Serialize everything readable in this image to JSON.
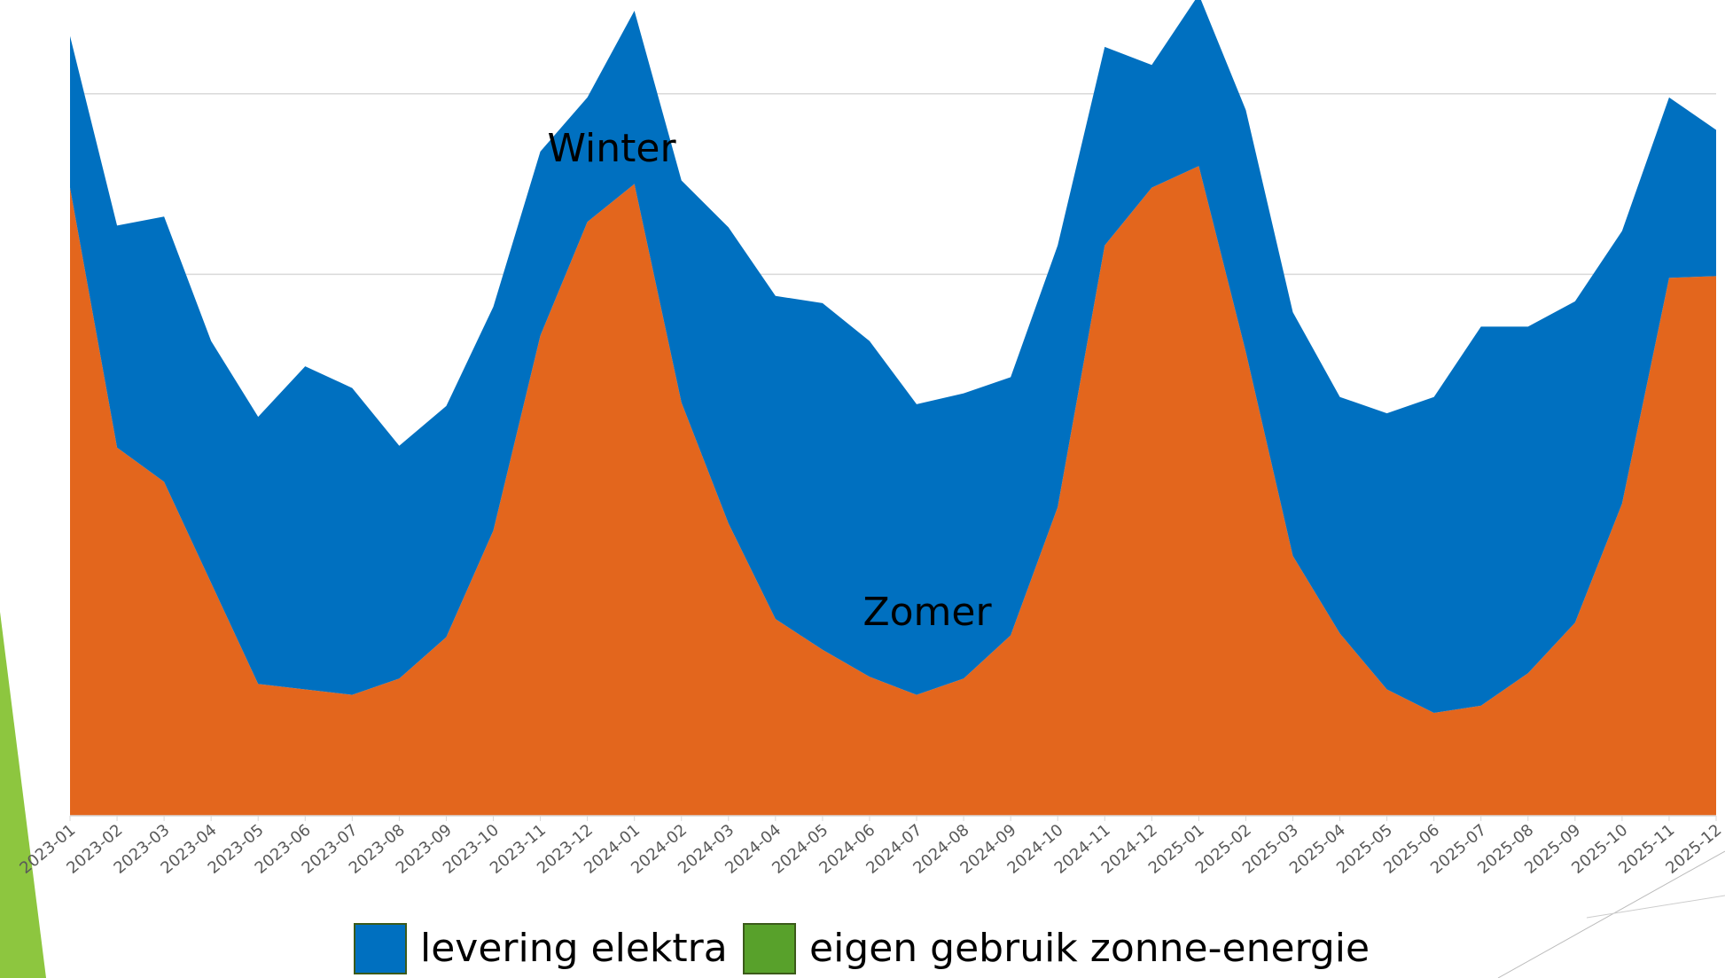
{
  "chart_data": {
    "type": "stacked_area",
    "categories": [
      "2023-01",
      "2023-02",
      "2023-03",
      "2023-04",
      "2023-05",
      "2023-06",
      "2023-07",
      "2023-08",
      "2023-09",
      "2023-10",
      "2023-11",
      "2023-12",
      "2024-01",
      "2024-02",
      "2024-03",
      "2024-04",
      "2024-05",
      "2024-06",
      "2024-07",
      "2024-08",
      "2024-09",
      "2024-10",
      "2024-11",
      "2024-12",
      "2025-01",
      "2025-02",
      "2025-03",
      "2025-04",
      "2025-05",
      "2025-06",
      "2025-07",
      "2025-08",
      "2025-09",
      "2025-10",
      "2025-11",
      "2025-12"
    ],
    "series": [
      {
        "color": "#e3661d",
        "values": [
          348,
          204,
          185,
          129,
          73,
          70,
          67,
          76,
          99,
          158,
          266,
          329,
          350,
          229,
          162,
          109,
          92,
          77,
          67,
          76,
          100,
          171,
          316,
          348,
          360,
          257,
          144,
          101,
          70,
          57,
          61,
          79,
          107,
          173,
          298,
          299
        ]
      },
      {
        "name": "levering elektra",
        "color": "#0070c0",
        "values": [
          84,
          123,
          147,
          134,
          148,
          179,
          170,
          129,
          128,
          124,
          102,
          69,
          96,
          123,
          164,
          179,
          192,
          186,
          161,
          158,
          143,
          145,
          110,
          68,
          95,
          134,
          135,
          131,
          153,
          175,
          210,
          192,
          178,
          151,
          100,
          81
        ]
      },
      {
        "name": "eigen gebruik zonne-energie",
        "color": "#58a12b",
        "values": [
          null,
          null,
          null,
          null,
          null,
          null,
          null,
          null,
          null,
          null,
          null,
          null,
          null,
          null,
          null,
          null,
          null,
          null,
          null,
          null,
          null,
          null,
          null,
          null,
          null,
          null,
          null,
          null,
          null,
          null,
          null,
          null,
          null,
          null,
          null,
          null
        ]
      }
    ],
    "annotations": [
      "Winter",
      "Zomer"
    ],
    "ylim": [
      0,
      450
    ],
    "yticks": [
      0,
      100,
      200,
      300,
      400
    ],
    "grid": true
  }
}
